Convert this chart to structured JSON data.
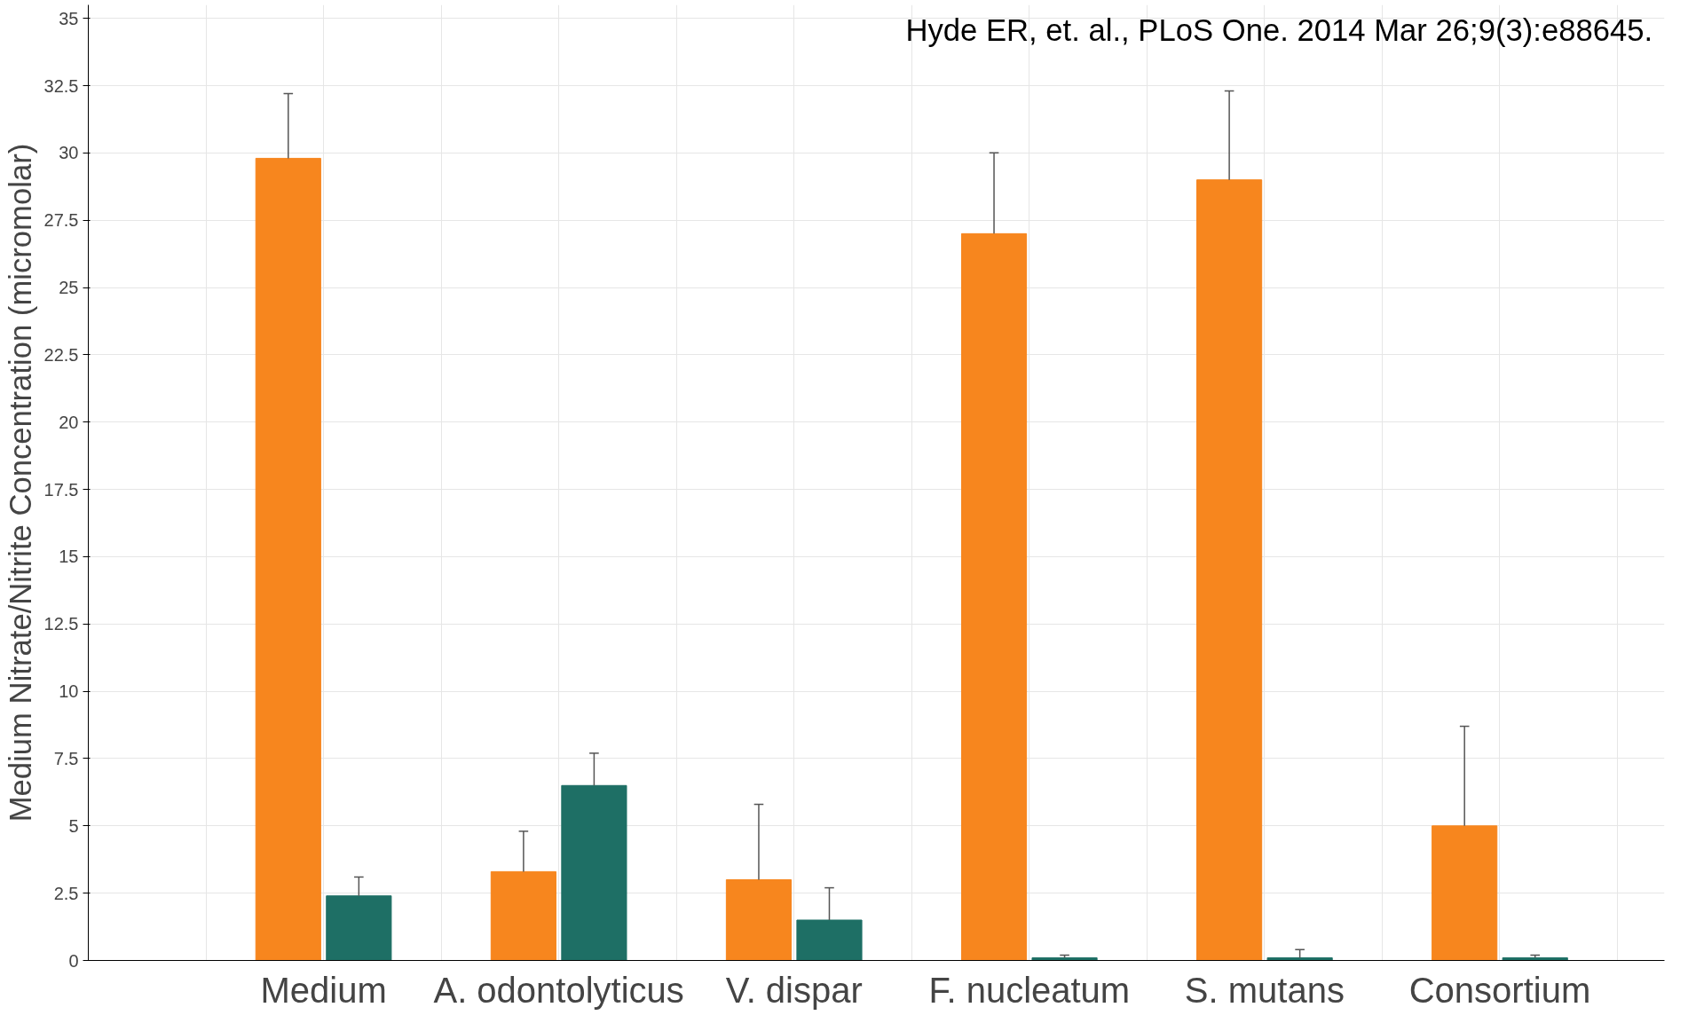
{
  "chart_data": {
    "type": "bar",
    "ylabel": "Medium Nitrate/Nitrite Concentration (micromolar)",
    "categories": [
      "Medium",
      "A. odontolyticus",
      "V. dispar",
      "F. nucleatum",
      "S. mutans",
      "Consortium"
    ],
    "series": [
      {
        "color": "#f7861e",
        "values": [
          29.8,
          3.3,
          3.0,
          27.0,
          29.0,
          5.0
        ],
        "errors": [
          [
            29.8,
            32.2
          ],
          [
            3.3,
            4.8
          ],
          [
            3.0,
            5.8
          ],
          [
            27.0,
            30.0
          ],
          [
            29.0,
            32.3
          ],
          [
            5.0,
            8.7
          ]
        ]
      },
      {
        "color": "#1e6f65",
        "values": [
          2.4,
          6.5,
          1.5,
          0.1,
          0.1,
          0.1
        ],
        "errors": [
          [
            2.4,
            3.1
          ],
          [
            6.5,
            7.7
          ],
          [
            1.5,
            2.7
          ],
          [
            0.1,
            0.2
          ],
          [
            0.1,
            0.4
          ],
          [
            0.1,
            0.2
          ]
        ]
      }
    ],
    "ylim": [
      0,
      35.5
    ],
    "yticks": [
      0,
      2.5,
      5,
      7.5,
      10,
      12.5,
      15,
      17.5,
      20,
      22.5,
      25,
      27.5,
      30,
      32.5,
      35
    ],
    "grid": true,
    "annotations": [
      "Hyde ER, et. al., PLoS One. 2014 Mar 26;9(3):e88645."
    ]
  }
}
